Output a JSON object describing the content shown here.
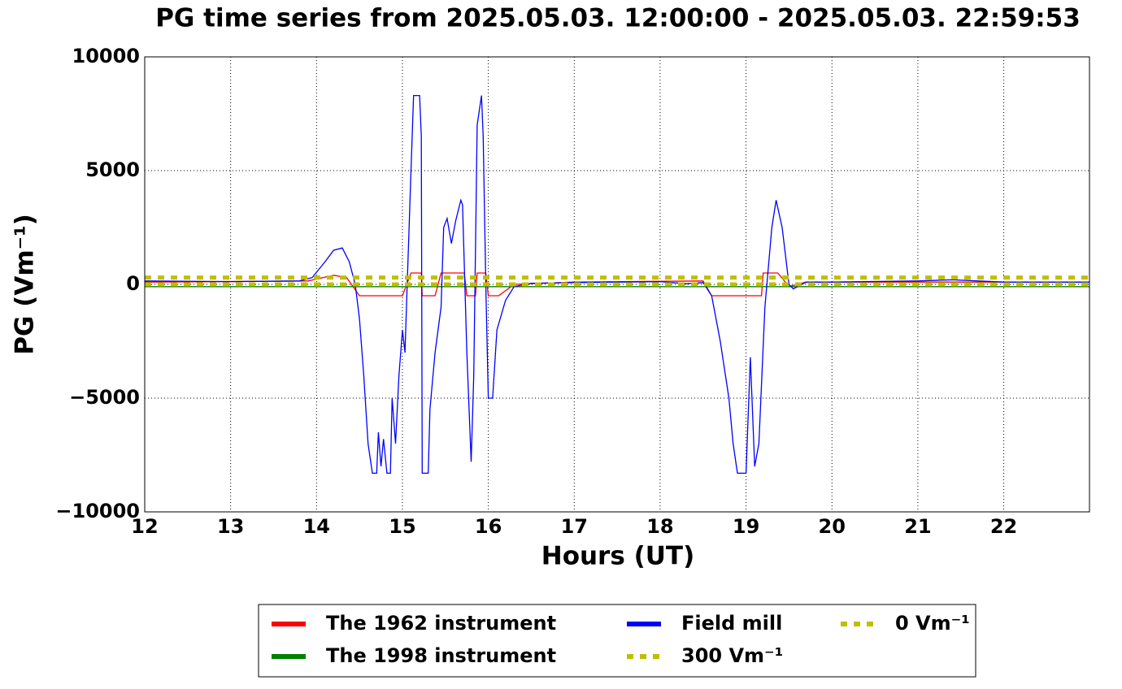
{
  "chart_data": {
    "type": "line",
    "title": "PG time series from 2025.05.03. 12:00:00 - 2025.05.03. 22:59:53",
    "x_label": "Hours (UT)",
    "y_label": "PG (Vm⁻¹)",
    "xlim": [
      12,
      22.998
    ],
    "xticks": [
      12,
      13,
      14,
      15,
      16,
      17,
      18,
      19,
      20,
      21,
      22
    ],
    "ylim": [
      -10000,
      10000
    ],
    "yticks": [
      {
        "value": -10000,
        "label": "−10000"
      },
      {
        "value": -5000,
        "label": "−5000"
      },
      0,
      5000,
      10000
    ],
    "grid": true,
    "legend": "below",
    "series": [
      {
        "name": "The 1962 instrument",
        "color": "#ff0000",
        "x": [
          12,
          13.9,
          14.2,
          14.35,
          14.5,
          15.0,
          15.1,
          15.22,
          15.23,
          15.38,
          15.45,
          15.72,
          15.75,
          15.85,
          15.87,
          15.97,
          16.0,
          16.12,
          16.3,
          17,
          18.5,
          18.6,
          19.18,
          19.2,
          19.37,
          19.5,
          19.7,
          22.998
        ],
        "values": [
          100,
          150,
          400,
          300,
          -500,
          -500,
          500,
          500,
          -500,
          -500,
          500,
          500,
          -500,
          -500,
          500,
          500,
          -500,
          -500,
          0,
          100,
          150,
          -500,
          -500,
          500,
          500,
          -100,
          100,
          100
        ]
      },
      {
        "name": "The 1998 instrument",
        "color": "#008000",
        "x": [
          12,
          22.998
        ],
        "values": [
          -100,
          -100
        ]
      },
      {
        "name": "Field mill",
        "color": "#0000ff",
        "x": [
          12.0,
          13.0,
          13.8,
          13.95,
          14.1,
          14.2,
          14.3,
          14.38,
          14.45,
          14.5,
          14.55,
          14.6,
          14.65,
          14.7,
          14.72,
          14.75,
          14.78,
          14.82,
          14.86,
          14.88,
          14.92,
          14.96,
          15.0,
          15.03,
          15.06,
          15.1,
          15.13,
          15.2,
          15.22,
          15.23,
          15.3,
          15.32,
          15.38,
          15.45,
          15.48,
          15.52,
          15.57,
          15.62,
          15.68,
          15.7,
          15.75,
          15.8,
          15.83,
          15.87,
          15.92,
          15.94,
          15.97,
          16.0,
          16.05,
          16.1,
          16.2,
          16.3,
          16.5,
          17.0,
          18.0,
          18.3,
          18.5,
          18.6,
          18.7,
          18.8,
          18.85,
          18.9,
          19.0,
          19.05,
          19.1,
          19.15,
          19.22,
          19.3,
          19.35,
          19.42,
          19.5,
          19.55,
          19.7,
          20.0,
          21.0,
          21.4,
          22.0,
          22.998
        ],
        "values": [
          150,
          120,
          150,
          300,
          1000,
          1500,
          1600,
          1000,
          0,
          -1500,
          -4000,
          -7000,
          -8300,
          -8300,
          -6500,
          -8000,
          -6800,
          -8300,
          -8300,
          -5000,
          -7000,
          -4000,
          -2000,
          -3000,
          500,
          5000,
          8300,
          8300,
          6500,
          -8300,
          -8300,
          -5500,
          -3000,
          -1000,
          2500,
          2900,
          1800,
          2800,
          3700,
          3500,
          -3000,
          -7800,
          -4000,
          7000,
          8300,
          6500,
          0,
          -5000,
          -5000,
          -2000,
          -700,
          -100,
          50,
          80,
          120,
          30,
          80,
          -500,
          -2500,
          -5000,
          -7000,
          -8300,
          -8300,
          -3200,
          -8000,
          -7000,
          -1000,
          2500,
          3700,
          2500,
          0,
          -200,
          100,
          100,
          150,
          200,
          100,
          100
        ]
      },
      {
        "name": "300 Vm⁻¹",
        "color": "#bfbf00",
        "dashed": true,
        "x": [
          12,
          22.998
        ],
        "values": [
          300,
          300
        ]
      },
      {
        "name": "0 Vm⁻¹",
        "color": "#bfbf00",
        "dashed": true,
        "x": [
          12,
          22.998
        ],
        "values": [
          0,
          0
        ]
      }
    ]
  }
}
